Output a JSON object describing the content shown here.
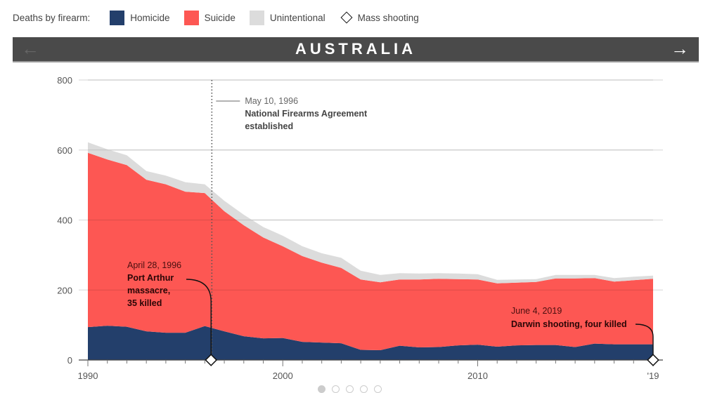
{
  "legend": {
    "lead": "Deaths by firearm:",
    "items": [
      {
        "label": "Homicide",
        "color": "#233f6b"
      },
      {
        "label": "Suicide",
        "color": "#fd5753"
      },
      {
        "label": "Unintentional",
        "color": "#dcdcdc"
      }
    ],
    "marker_label": "Mass shooting"
  },
  "banner": {
    "title": "AUSTRALIA",
    "prev_icon": "←",
    "next_icon": "→"
  },
  "pagination": {
    "count": 5,
    "active": 0
  },
  "chart_data": {
    "type": "area",
    "stacked": true,
    "title": "AUSTRALIA",
    "xlabel": "",
    "ylabel": "",
    "x": [
      1990,
      1991,
      1992,
      1993,
      1994,
      1995,
      1996,
      1997,
      1998,
      1999,
      2000,
      2001,
      2002,
      2003,
      2004,
      2005,
      2006,
      2007,
      2008,
      2009,
      2010,
      2011,
      2012,
      2013,
      2014,
      2015,
      2016,
      2017,
      2018,
      2019
    ],
    "series": [
      {
        "name": "Homicide",
        "color": "#233f6b",
        "values": [
          94,
          98,
          95,
          82,
          78,
          78,
          97,
          82,
          68,
          62,
          63,
          52,
          50,
          48,
          29,
          28,
          41,
          36,
          37,
          42,
          44,
          38,
          42,
          43,
          43,
          37,
          47,
          45,
          45,
          45
        ]
      },
      {
        "name": "Suicide",
        "color": "#fd5753",
        "values": [
          498,
          475,
          462,
          433,
          424,
          403,
          380,
          343,
          317,
          288,
          262,
          245,
          228,
          215,
          201,
          194,
          189,
          194,
          195,
          189,
          186,
          181,
          179,
          180,
          190,
          196,
          187,
          179,
          183,
          187
        ]
      },
      {
        "name": "Unintentional",
        "color": "#dcdcdc",
        "values": [
          30,
          29,
          28,
          25,
          25,
          27,
          25,
          30,
          30,
          30,
          30,
          28,
          27,
          29,
          25,
          21,
          18,
          17,
          16,
          16,
          15,
          10,
          9,
          8,
          10,
          10,
          9,
          10,
          10,
          9
        ]
      }
    ],
    "ylim": [
      0,
      800
    ],
    "xlim": [
      1990,
      2019
    ],
    "yticks": [
      0,
      200,
      400,
      600,
      800
    ],
    "xticks": [
      {
        "value": 1990,
        "label": "1990"
      },
      {
        "value": 2000,
        "label": "2000"
      },
      {
        "value": 2010,
        "label": "2010"
      },
      {
        "value": 2019,
        "label": "'19"
      }
    ],
    "grid": true,
    "legend_position": "top-left",
    "annotations": [
      {
        "id": "nfa",
        "x": 1996.36,
        "type": "vline-dotted",
        "date": "May 10, 1996",
        "lines": [
          "National Firearms Agreement",
          "established"
        ]
      },
      {
        "id": "port-arthur",
        "x": 1996.32,
        "type": "mass-shooting",
        "date": "April 28, 1996",
        "lines": [
          "Port Arthur",
          "massacre,",
          "35 killed"
        ]
      },
      {
        "id": "darwin",
        "x": 2019.0,
        "type": "mass-shooting",
        "date": "June 4, 2019",
        "lines": [
          "Darwin shooting, four killed"
        ]
      }
    ]
  }
}
